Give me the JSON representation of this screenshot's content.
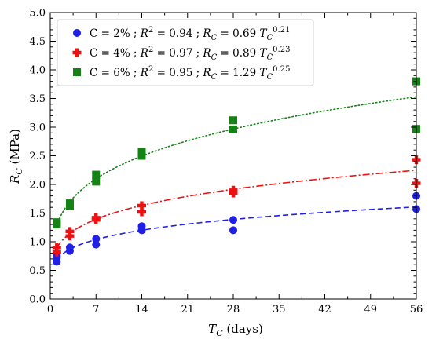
{
  "chart_data": {
    "type": "scatter",
    "xlabel_main": "T",
    "xlabel_sub": "C",
    "xlabel_unit": " (days)",
    "ylabel_main": "R",
    "ylabel_sub": "C",
    "ylabel_unit": " (MPa)",
    "xlim": [
      0,
      56
    ],
    "ylim": [
      0,
      5
    ],
    "xticks": [
      0,
      7,
      14,
      21,
      28,
      35,
      42,
      49,
      56
    ],
    "yticks": [
      0.0,
      0.5,
      1.0,
      1.5,
      2.0,
      2.5,
      3.0,
      3.5,
      4.0,
      4.5,
      5.0
    ],
    "grid": false,
    "legend_position": "top-left",
    "series": [
      {
        "legend": {
          "a": "C = 2% ; ",
          "r": "R",
          "r2": "2",
          "b": " = 0.94 ; ",
          "rc": "R",
          "rcsub": "C",
          "c": " = 0.69 ",
          "tc": "T",
          "tcsub": "C",
          "exp": "0.21"
        },
        "color": "#1f1fe6",
        "marker": "circle",
        "line": "dashed",
        "fit": {
          "a": 0.69,
          "b": 0.21
        },
        "points": [
          {
            "x": 1,
            "y": 0.65
          },
          {
            "x": 1,
            "y": 0.72
          },
          {
            "x": 1,
            "y": 0.78
          },
          {
            "x": 3,
            "y": 0.84
          },
          {
            "x": 3,
            "y": 0.9
          },
          {
            "x": 7,
            "y": 0.95
          },
          {
            "x": 7,
            "y": 1.05
          },
          {
            "x": 14,
            "y": 1.2
          },
          {
            "x": 14,
            "y": 1.27
          },
          {
            "x": 28,
            "y": 1.2
          },
          {
            "x": 28,
            "y": 1.38
          },
          {
            "x": 56,
            "y": 1.57
          },
          {
            "x": 56,
            "y": 1.8
          }
        ]
      },
      {
        "legend": {
          "a": "C = 4% ; ",
          "r": "R",
          "r2": "2",
          "b": " = 0.97 ; ",
          "rc": "R",
          "rcsub": "C",
          "c": " = 0.89 ",
          "tc": "T",
          "tcsub": "C",
          "exp": "0.23"
        },
        "color": "#ee1111",
        "marker": "plus",
        "line": "dashdot",
        "fit": {
          "a": 0.89,
          "b": 0.23
        },
        "points": [
          {
            "x": 1,
            "y": 0.82
          },
          {
            "x": 1,
            "y": 0.9
          },
          {
            "x": 3,
            "y": 1.1
          },
          {
            "x": 3,
            "y": 1.18
          },
          {
            "x": 7,
            "y": 1.38
          },
          {
            "x": 7,
            "y": 1.42
          },
          {
            "x": 14,
            "y": 1.52
          },
          {
            "x": 14,
            "y": 1.63
          },
          {
            "x": 28,
            "y": 1.85
          },
          {
            "x": 28,
            "y": 1.9
          },
          {
            "x": 56,
            "y": 2.02
          },
          {
            "x": 56,
            "y": 2.43
          }
        ]
      },
      {
        "legend": {
          "a": "C = 6% ; ",
          "r": "R",
          "r2": "2",
          "b": " = 0.95 ; ",
          "rc": "R",
          "rcsub": "C",
          "c": " = 1.29 ",
          "tc": "T",
          "tcsub": "C",
          "exp": "0.25"
        },
        "color": "#148214",
        "marker": "square",
        "line": "dotted",
        "fit": {
          "a": 1.29,
          "b": 0.25
        },
        "points": [
          {
            "x": 1,
            "y": 1.3
          },
          {
            "x": 1,
            "y": 1.34
          },
          {
            "x": 3,
            "y": 1.62
          },
          {
            "x": 3,
            "y": 1.67
          },
          {
            "x": 7,
            "y": 2.05
          },
          {
            "x": 7,
            "y": 2.17
          },
          {
            "x": 14,
            "y": 2.5
          },
          {
            "x": 14,
            "y": 2.57
          },
          {
            "x": 28,
            "y": 2.96
          },
          {
            "x": 28,
            "y": 3.12
          },
          {
            "x": 56,
            "y": 2.97
          },
          {
            "x": 56,
            "y": 3.8
          }
        ]
      }
    ]
  }
}
